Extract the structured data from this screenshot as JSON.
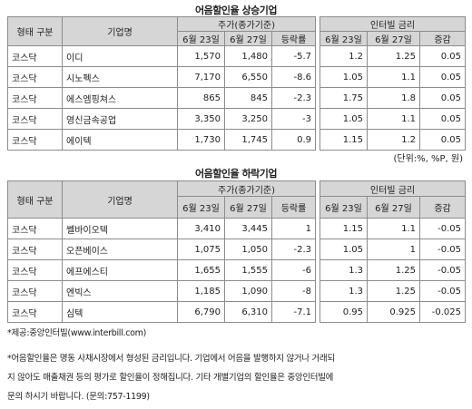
{
  "upper": {
    "title": "어음할인율 상승기업",
    "head": {
      "type": "형태 구분",
      "company": "기업명",
      "price": "주가(종가기준)",
      "rate": "인터빌 금리",
      "d1": "6월 23일",
      "d2": "6월 27일",
      "change": "등락률",
      "r1": "6월 23일",
      "r2": "6월 27일",
      "delta": "증감"
    },
    "rows": [
      {
        "type": "코스닥",
        "name": "이디",
        "p1": "1,570",
        "p2": "1,480",
        "chg": "-5.7",
        "r1": "1.2",
        "r2": "1.25",
        "d": "0.05"
      },
      {
        "type": "코스닥",
        "name": "시노펙스",
        "p1": "7,170",
        "p2": "6,550",
        "chg": "-8.6",
        "r1": "1.05",
        "r2": "1.1",
        "d": "0.05"
      },
      {
        "type": "코스닥",
        "name": "에스엠핑쳐스",
        "p1": "865",
        "p2": "845",
        "chg": "-2.3",
        "r1": "1.75",
        "r2": "1.8",
        "d": "0.05"
      },
      {
        "type": "코스닥",
        "name": "영신금속공업",
        "p1": "3,350",
        "p2": "3,250",
        "chg": "-3",
        "r1": "1.05",
        "r2": "1.1",
        "d": "0.05"
      },
      {
        "type": "코스닥",
        "name": "에이텍",
        "p1": "1,730",
        "p2": "1,745",
        "chg": "0.9",
        "r1": "1.15",
        "r2": "1.2",
        "d": "0.05"
      }
    ]
  },
  "unit": "(단위:%, %P, 원)",
  "lower": {
    "title": "어음할인율 하락기업",
    "head": {
      "type": "형태 구분",
      "company": "기업명",
      "price": "주가(종가기준)",
      "rate": "인터빌 금리",
      "d1": "6월 23일",
      "d2": "6월 27일",
      "change": "등락률",
      "r1": "6월 23일",
      "r2": "6월 27일",
      "delta": "증감"
    },
    "rows": [
      {
        "type": "코스닥",
        "name": "쎌바이오텍",
        "p1": "3,410",
        "p2": "3,445",
        "chg": "1",
        "r1": "1.15",
        "r2": "1.1",
        "d": "-0.05"
      },
      {
        "type": "코스닥",
        "name": "오픈베이스",
        "p1": "1,075",
        "p2": "1,050",
        "chg": "-2.3",
        "r1": "1.05",
        "r2": "1",
        "d": "-0.05"
      },
      {
        "type": "코스닥",
        "name": "에프에스티",
        "p1": "1,655",
        "p2": "1,555",
        "chg": "-6",
        "r1": "1.3",
        "r2": "1.25",
        "d": "-0.05"
      },
      {
        "type": "코스닥",
        "name": "엔빅스",
        "p1": "1,185",
        "p2": "1,090",
        "chg": "-8",
        "r1": "1.3",
        "r2": "1.25",
        "d": "-0.05"
      },
      {
        "type": "코스닥",
        "name": "심텍",
        "p1": "6,790",
        "p2": "6,310",
        "chg": "-7.1",
        "r1": "0.95",
        "r2": "0.925",
        "d": "-0.025"
      }
    ]
  },
  "notes": {
    "source": "*제공:중앙인터빌(www.interbill.com)",
    "line1": "*어음할인율은 명동 사채시장에서 형성된 금리입니다. 기업에서 어음을 발행하지 않거나 거래되",
    "line2": "지 않아도 매출채권 등의 평가로 할인율이 정해집니다. 기타 개별기업의 할인율은 중앙인터빌에",
    "line3": "문의 하시기 바랍니다. (문의:757-1199)"
  }
}
